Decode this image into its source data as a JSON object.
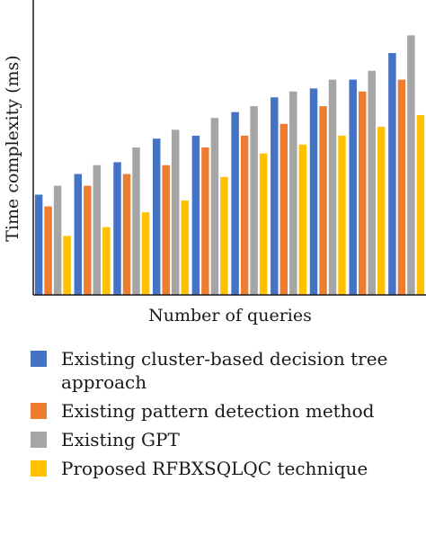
{
  "chart_data": {
    "type": "bar",
    "title": "",
    "xlabel": "Number of queries",
    "ylabel": "Time complexity (ms)",
    "categories": [
      "",
      "",
      "",
      "",
      "",
      "",
      "",
      "",
      "",
      ""
    ],
    "ylim": [
      0,
      100
    ],
    "grid": false,
    "legend_position": "bottom",
    "series": [
      {
        "name": "Existing cluster-based decision tree approach",
        "color": "#4472C4",
        "values": [
          34,
          41,
          45,
          53,
          54,
          62,
          67,
          70,
          73,
          82
        ]
      },
      {
        "name": "Existing pattern detection method",
        "color": "#ED7D31",
        "values": [
          30,
          37,
          41,
          44,
          50,
          54,
          58,
          64,
          69,
          73
        ]
      },
      {
        "name": "Existing GPT",
        "color": "#A5A5A5",
        "values": [
          37,
          44,
          50,
          56,
          60,
          64,
          69,
          73,
          76,
          88
        ]
      },
      {
        "name": "Proposed RFBXSQLQC technique",
        "color": "#FFC000",
        "values": [
          20,
          23,
          28,
          32,
          40,
          48,
          51,
          54,
          57,
          61
        ]
      }
    ]
  }
}
